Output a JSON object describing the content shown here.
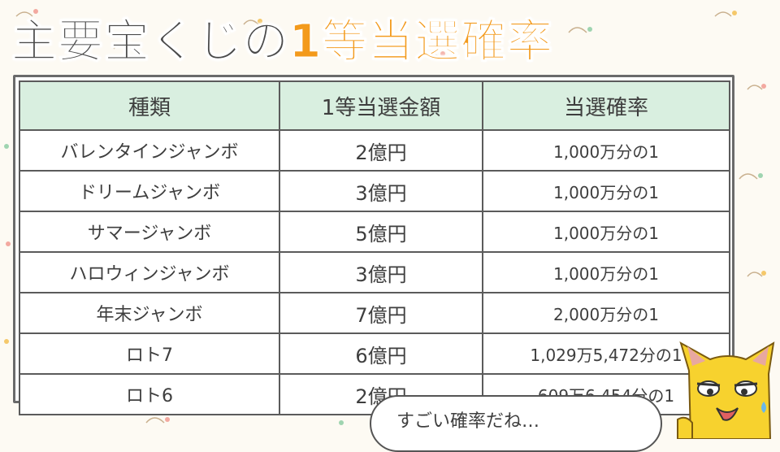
{
  "title": {
    "part1": "主要宝くじの",
    "part2": "1等当選確率"
  },
  "table": {
    "headers": [
      "種類",
      "1等当選金額",
      "当選確率"
    ],
    "rows": [
      {
        "name": "バレンタインジャンボ",
        "amount": "2億円",
        "prob": "1,000万分の1"
      },
      {
        "name": "ドリームジャンボ",
        "amount": "3億円",
        "prob": "1,000万分の1"
      },
      {
        "name": "サマージャンボ",
        "amount": "5億円",
        "prob": "1,000万分の1"
      },
      {
        "name": "ハロウィンジャンボ",
        "amount": "3億円",
        "prob": "1,000万分の1"
      },
      {
        "name": "年末ジャンボ",
        "amount": "7億円",
        "prob": "2,000万分の1"
      },
      {
        "name": "ロト7",
        "amount": "6億円",
        "prob": "1,029万5,472分の1"
      },
      {
        "name": "ロト6",
        "amount": "2億円",
        "prob": "609万6,454分の1"
      }
    ]
  },
  "bubble": {
    "text": "すごい確率だね…"
  },
  "colors": {
    "accent": "#f39a1c",
    "header_bg": "#d9efe0",
    "mascot": "#f7d22e"
  }
}
